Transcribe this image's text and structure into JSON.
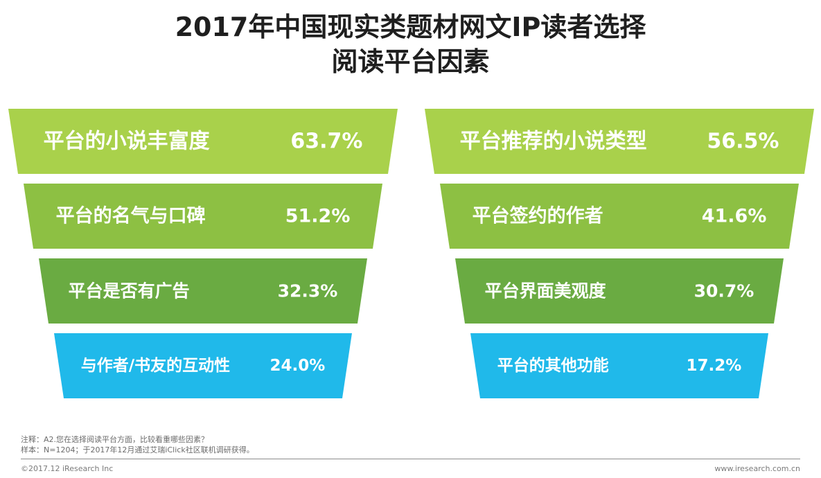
{
  "title": {
    "line1": "2017年中国现实类题材网文IP读者选择",
    "line2": "阅读平台因素"
  },
  "chart_data": [
    {
      "type": "bar",
      "orientation": "funnel",
      "categories": [
        "平台的小说丰富度",
        "平台的名气与口碑",
        "平台是否有广告",
        "与作者/书友的互动性"
      ],
      "values": [
        63.7,
        51.2,
        32.3,
        24.0
      ],
      "value_labels": [
        "63.7%",
        "51.2%",
        "32.3%",
        "24.0%"
      ],
      "colors": [
        "#a9d14b",
        "#8dc043",
        "#6aab42",
        "#20b9ea"
      ],
      "unit": "%"
    },
    {
      "type": "bar",
      "orientation": "funnel",
      "categories": [
        "平台推荐的小说类型",
        "平台签约的作者",
        "平台界面美观度",
        "平台的其他功能"
      ],
      "values": [
        56.5,
        41.6,
        30.7,
        17.2
      ],
      "value_labels": [
        "56.5%",
        "41.6%",
        "30.7%",
        "17.2%"
      ],
      "colors": [
        "#a9d14b",
        "#8dc043",
        "#6aab42",
        "#20b9ea"
      ],
      "unit": "%"
    }
  ],
  "footnote": {
    "note": "注释：A2.您在选择阅读平台方面，比较看重哪些因素？",
    "sample": "样本：N=1204；于2017年12月通过艾瑞iClick社区联机调研获得。"
  },
  "footer": {
    "copyright": "©2017.12 iResearch Inc",
    "website": "www.iresearch.com.cn"
  }
}
